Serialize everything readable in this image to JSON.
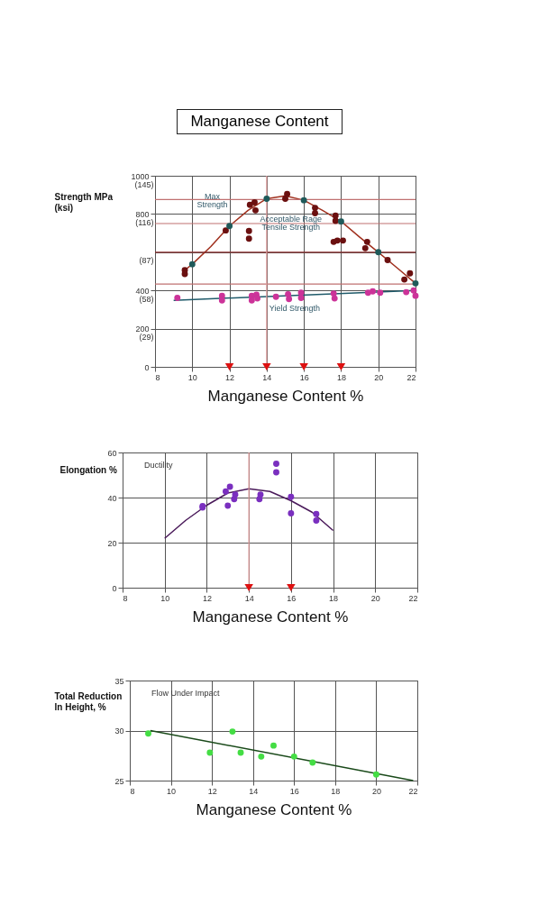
{
  "chart_data": [
    {
      "type": "scatter",
      "title": "Manganese Content",
      "xlabel": "Manganese Content %",
      "ylabel": "Strength MPa\n(ksi)",
      "xlim": [
        8,
        22
      ],
      "xticks": [
        8,
        10,
        12,
        14,
        16,
        18,
        20,
        22
      ],
      "ylim": [
        0,
        1000
      ],
      "yticks": [
        0,
        200,
        400,
        800,
        1000
      ],
      "y2lim": [
        0,
        145
      ],
      "y2ticks": [
        {
          "value": 29,
          "label": "(29)"
        },
        {
          "value": 58,
          "label": "(58)"
        },
        {
          "value": 87,
          "label": "(87)"
        },
        {
          "value": 116,
          "label": "(116)"
        },
        {
          "value": 145,
          "label": "(145)"
        }
      ],
      "grid": true,
      "series": [
        {
          "type": "line",
          "color": "#a0301e",
          "x": [
            9.6,
            10,
            11,
            12,
            13,
            14,
            15,
            16,
            17,
            18,
            19,
            20,
            21,
            22
          ],
          "values": [
            506,
            537,
            630,
            737,
            819,
            880,
            895,
            872,
            819,
            761,
            679,
            600,
            519,
            437
          ]
        },
        {
          "type": "line",
          "name": "Yield Strength",
          "color": "#1f5a6a",
          "x": [
            9,
            22
          ],
          "values": [
            348,
            400
          ]
        },
        {
          "marker": "circle",
          "color": "#6b1010",
          "x": [
            9.6,
            9.6,
            11.8,
            13.1,
            13.35,
            13.4,
            13.05,
            13.05,
            15.0,
            15.1,
            16.6,
            16.6,
            17.7,
            17.7,
            17.6,
            17.8,
            18.1,
            19.4,
            19.3,
            20.5,
            21.4,
            21.7
          ],
          "values": [
            506,
            486,
            714,
            848,
            861,
            819,
            711,
            671,
            880,
            905,
            832,
            804,
            791,
            764,
            654,
            661,
            661,
            654,
            621,
            559,
            457,
            489
          ]
        },
        {
          "marker": "circle",
          "color": "#1f5a5a",
          "x": [
            10,
            12,
            14,
            16,
            18,
            20,
            22
          ],
          "values": [
            537,
            737,
            880,
            872,
            761,
            600,
            437
          ]
        },
        {
          "marker": "circle",
          "color": "#cc3399",
          "x": [
            9.2,
            11.6,
            11.6,
            13.2,
            13.2,
            13.45,
            13.5,
            14.5,
            15.15,
            15.2,
            15.85,
            15.85,
            17.6,
            17.65,
            19.45,
            19.7,
            20.1,
            21.5,
            21.9,
            22
          ],
          "values": [
            361,
            372,
            348,
            372,
            348,
            377,
            358,
            367,
            380,
            355,
            388,
            361,
            384,
            358,
            388,
            395,
            388,
            391,
            400,
            372
          ]
        },
        {
          "color": "#dd1111",
          "marker": "triangle",
          "x": [
            12,
            14,
            16,
            18
          ],
          "values": [
            0,
            0,
            0,
            0
          ]
        }
      ],
      "ref_lines": [
        {
          "axis": "y",
          "value": 876,
          "color": "#c07070",
          "label": "Max\nStrength"
        },
        {
          "axis": "y",
          "value": 750,
          "color": "#c07070"
        },
        {
          "axis": "y",
          "value": 600,
          "color": "#8a2a2a"
        },
        {
          "axis": "y",
          "value": 433,
          "color": "#c07070"
        },
        {
          "axis": "x",
          "value": 14,
          "color": "#e09a9a"
        }
      ],
      "annotations": [
        {
          "text": "Acceptable Rage",
          "x": 15.3,
          "y": 773
        },
        {
          "text": "Tensile Strength",
          "x": 15.3,
          "y": 729
        }
      ]
    },
    {
      "type": "scatter",
      "xlabel": "Manganese Content %",
      "ylabel": "Elongation %",
      "xlim": [
        8,
        22
      ],
      "xticks": [
        8,
        10,
        12,
        14,
        16,
        18,
        20,
        22
      ],
      "ylim": [
        0,
        60
      ],
      "yticks": [
        0,
        20,
        40,
        60
      ],
      "grid": true,
      "series": [
        {
          "type": "line",
          "color": "#4a1a5a",
          "x": [
            10,
            11,
            12,
            13,
            14,
            15,
            16,
            17,
            18
          ],
          "values": [
            21.9,
            29.9,
            36.6,
            42,
            43.9,
            42.7,
            38.6,
            33.5,
            25.4
          ]
        },
        {
          "marker": "circle",
          "color": "#7a2fbf",
          "x": [
            11.8,
            11.8,
            12.9,
            13.1,
            13.0,
            13.3,
            13.35,
            14.5,
            14.55,
            15.3,
            15.3,
            16.0,
            16.0,
            17.2,
            17.2
          ],
          "values": [
            36.2,
            35.6,
            42.7,
            44.8,
            36.4,
            39.3,
            41.3,
            39.3,
            41.3,
            51.2,
            55.0,
            40.3,
            33.0,
            32.7,
            29.8
          ]
        },
        {
          "color": "#dd1111",
          "marker": "triangle",
          "x": [
            14,
            16
          ],
          "values": [
            0,
            0
          ]
        }
      ],
      "ref_lines": [
        {
          "axis": "x",
          "value": 14,
          "color": "#e09a9a"
        }
      ],
      "annotations": [
        "Ductility"
      ]
    },
    {
      "type": "scatter",
      "xlabel": "Manganese Content %",
      "ylabel": "Total Reduction\nIn Height, %",
      "xlim": [
        8,
        22
      ],
      "xticks": [
        8,
        10,
        12,
        14,
        16,
        18,
        20,
        22
      ],
      "ylim": [
        25,
        35
      ],
      "yticks": [
        25,
        30,
        35
      ],
      "grid": true,
      "series": [
        {
          "type": "line",
          "color": "#1a4a1a",
          "x": [
            9,
            21.8
          ],
          "values": [
            30,
            25
          ]
        },
        {
          "marker": "circle",
          "color": "#44dd44",
          "x": [
            8.9,
            11.9,
            13.0,
            13.4,
            14.4,
            15.0,
            16.0,
            16.9,
            20.0
          ],
          "values": [
            29.7,
            27.8,
            29.9,
            27.8,
            27.4,
            28.5,
            27.4,
            26.8,
            25.6
          ]
        }
      ],
      "annotations": [
        "Flow Under Impact"
      ]
    }
  ]
}
